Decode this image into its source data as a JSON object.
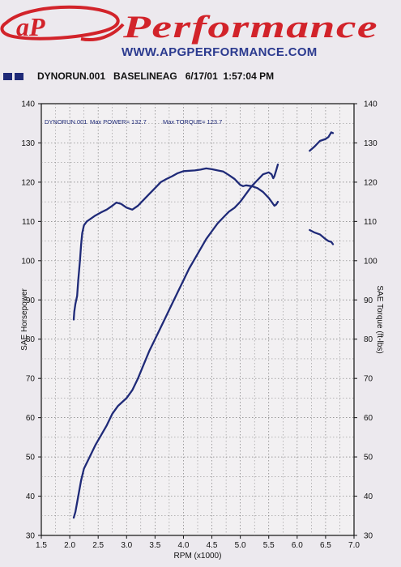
{
  "header": {
    "logo_text": "Performance",
    "logo_mark": "aP",
    "url": "WWW.APGPERFORMANCE.COM",
    "run_info": "DYNORUN.001   BASELINEAG   6/17/01  1:57:04 PM"
  },
  "colors": {
    "line": "#1f2a78",
    "logo_red": "#d2232a",
    "url_blue": "#2b3a8f",
    "grid": "#7a7a7a",
    "plot_bg": "#f2f0f2"
  },
  "chart_data": {
    "type": "line",
    "annotation_run": "DYNORUN.001",
    "annotation_power": "Max POWER= 132.7",
    "annotation_torque": "Max TORQUE= 123.7",
    "xlabel": "RPM (x1000)",
    "ylabel_left": "SAE Horsepower",
    "ylabel_right": "SAE Torque (ft-lbs)",
    "xlim": [
      1.5,
      7.0
    ],
    "ylim": [
      30,
      140
    ],
    "x_ticks": [
      "1.5",
      "2.0",
      "2.5",
      "3.0",
      "3.5",
      "4.0",
      "4.5",
      "5.0",
      "5.5",
      "6.0",
      "6.5",
      "7.0"
    ],
    "y_ticks": [
      "30",
      "40",
      "50",
      "60",
      "70",
      "80",
      "90",
      "100",
      "110",
      "120",
      "130",
      "140"
    ],
    "grid": true,
    "series": [
      {
        "role": "power",
        "segments": [
          [
            [
              2.07,
              34.5
            ],
            [
              2.1,
              36
            ],
            [
              2.15,
              40
            ],
            [
              2.2,
              44
            ],
            [
              2.25,
              47
            ],
            [
              2.35,
              50
            ],
            [
              2.45,
              53
            ],
            [
              2.55,
              55.5
            ],
            [
              2.65,
              58
            ],
            [
              2.75,
              61
            ],
            [
              2.85,
              63
            ],
            [
              3.0,
              65
            ],
            [
              3.1,
              67
            ],
            [
              3.2,
              70
            ],
            [
              3.3,
              73.5
            ],
            [
              3.4,
              77
            ],
            [
              3.5,
              80
            ],
            [
              3.6,
              83
            ],
            [
              3.7,
              86
            ],
            [
              3.8,
              89
            ],
            [
              3.9,
              92
            ],
            [
              4.0,
              95
            ],
            [
              4.1,
              98
            ],
            [
              4.2,
              100.5
            ],
            [
              4.3,
              103
            ],
            [
              4.4,
              105.5
            ],
            [
              4.5,
              107.5
            ],
            [
              4.6,
              109.5
            ],
            [
              4.7,
              111
            ],
            [
              4.8,
              112.5
            ],
            [
              4.9,
              113.5
            ],
            [
              5.0,
              115
            ],
            [
              5.1,
              117
            ],
            [
              5.2,
              119
            ],
            [
              5.3,
              120.5
            ],
            [
              5.4,
              122
            ],
            [
              5.5,
              122.5
            ],
            [
              5.55,
              122
            ],
            [
              5.58,
              121
            ],
            [
              5.6,
              121.5
            ],
            [
              5.63,
              123
            ],
            [
              5.66,
              124.5
            ]
          ],
          [
            [
              6.22,
              128
            ],
            [
              6.3,
              129
            ],
            [
              6.4,
              130.5
            ],
            [
              6.5,
              131
            ],
            [
              6.55,
              131.5
            ],
            [
              6.6,
              132.7
            ],
            [
              6.63,
              132.5
            ]
          ]
        ]
      },
      {
        "role": "torque",
        "segments": [
          [
            [
              2.07,
              85
            ],
            [
              2.08,
              87
            ],
            [
              2.1,
              89
            ],
            [
              2.13,
              91
            ],
            [
              2.15,
              95
            ],
            [
              2.18,
              100
            ],
            [
              2.2,
              104
            ],
            [
              2.22,
              107
            ],
            [
              2.25,
              109
            ],
            [
              2.3,
              110
            ],
            [
              2.35,
              110.5
            ],
            [
              2.45,
              111.5
            ],
            [
              2.55,
              112.3
            ],
            [
              2.65,
              113
            ],
            [
              2.75,
              114
            ],
            [
              2.82,
              114.8
            ],
            [
              2.9,
              114.5
            ],
            [
              3.0,
              113.5
            ],
            [
              3.1,
              113
            ],
            [
              3.2,
              114
            ],
            [
              3.3,
              115.5
            ],
            [
              3.4,
              117
            ],
            [
              3.5,
              118.5
            ],
            [
              3.6,
              120
            ],
            [
              3.7,
              120.8
            ],
            [
              3.8,
              121.5
            ],
            [
              3.9,
              122.3
            ],
            [
              4.0,
              122.8
            ],
            [
              4.2,
              123
            ],
            [
              4.3,
              123.2
            ],
            [
              4.4,
              123.5
            ],
            [
              4.5,
              123.3
            ],
            [
              4.6,
              123
            ],
            [
              4.7,
              122.7
            ],
            [
              4.8,
              121.8
            ],
            [
              4.9,
              120.8
            ],
            [
              5.0,
              119.3
            ],
            [
              5.05,
              119
            ],
            [
              5.1,
              119.2
            ],
            [
              5.2,
              119
            ],
            [
              5.3,
              118.5
            ],
            [
              5.4,
              117.5
            ],
            [
              5.5,
              116
            ],
            [
              5.55,
              115
            ],
            [
              5.6,
              114
            ],
            [
              5.63,
              114.3
            ],
            [
              5.66,
              115
            ]
          ],
          [
            [
              6.22,
              107.8
            ],
            [
              6.3,
              107.2
            ],
            [
              6.4,
              106.7
            ],
            [
              6.5,
              105.5
            ],
            [
              6.55,
              105
            ],
            [
              6.6,
              104.8
            ],
            [
              6.63,
              104.2
            ]
          ]
        ]
      }
    ]
  }
}
